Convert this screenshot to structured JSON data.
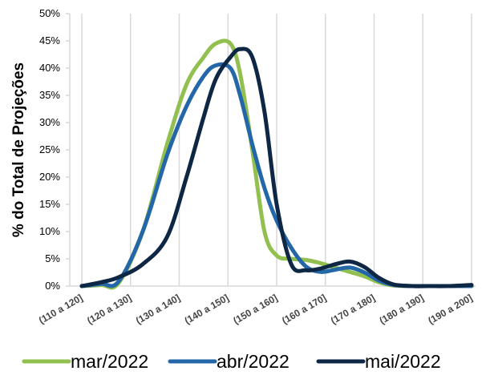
{
  "chart_data": {
    "type": "line",
    "title": "",
    "xlabel": "",
    "ylabel": "% do Total de Projeções",
    "ylim": [
      0,
      50
    ],
    "yticks": [
      "0%",
      "5%",
      "10%",
      "15%",
      "20%",
      "25%",
      "30%",
      "35%",
      "40%",
      "45%",
      "50%"
    ],
    "categories": [
      "(110 a 120]",
      "(120 a 130]",
      "(130 a 140]",
      "(140 a 150]",
      "(150 a 160]",
      "(160 a 170]",
      "(170 a 180]",
      "(180 a 190]",
      "(190 a 200]"
    ],
    "grid": "vertical",
    "legend_position": "bottom",
    "x": [
      0,
      0.4,
      0.75,
      1.25,
      1.75,
      2.15,
      2.5,
      2.75,
      3.05,
      3.25,
      3.5,
      3.75,
      4,
      4.3,
      4.6,
      4.9,
      5.2,
      5.5,
      5.8,
      6.1,
      6.4,
      6.8,
      7.1,
      7.5,
      8
    ],
    "series": [
      {
        "name": "mar/2022",
        "color": "#92C050",
        "values": [
          0,
          0.2,
          0.5,
          10,
          26,
          37,
          42,
          44.5,
          44.5,
          39,
          25,
          10,
          5.6,
          5,
          4.8,
          4.2,
          3.4,
          2.6,
          1.8,
          0.7,
          0.1,
          0,
          0,
          0,
          0
        ]
      },
      {
        "name": "abr/2022",
        "color": "#2467A8",
        "values": [
          0,
          0.4,
          0.8,
          10,
          24,
          33,
          38.5,
          40.5,
          40,
          35,
          26,
          18,
          12,
          7,
          3.6,
          2.6,
          3.0,
          3.4,
          2.5,
          1.0,
          0.2,
          0,
          0,
          0,
          0
        ]
      },
      {
        "name": "mai/2022",
        "color": "#0D2744",
        "values": [
          0,
          0.7,
          1.6,
          4,
          9,
          20,
          31,
          38,
          42,
          43.5,
          42,
          32,
          15,
          4,
          2.9,
          3.2,
          4.0,
          4.5,
          3.5,
          1.5,
          0.3,
          0,
          0,
          0,
          0.2
        ]
      }
    ]
  }
}
